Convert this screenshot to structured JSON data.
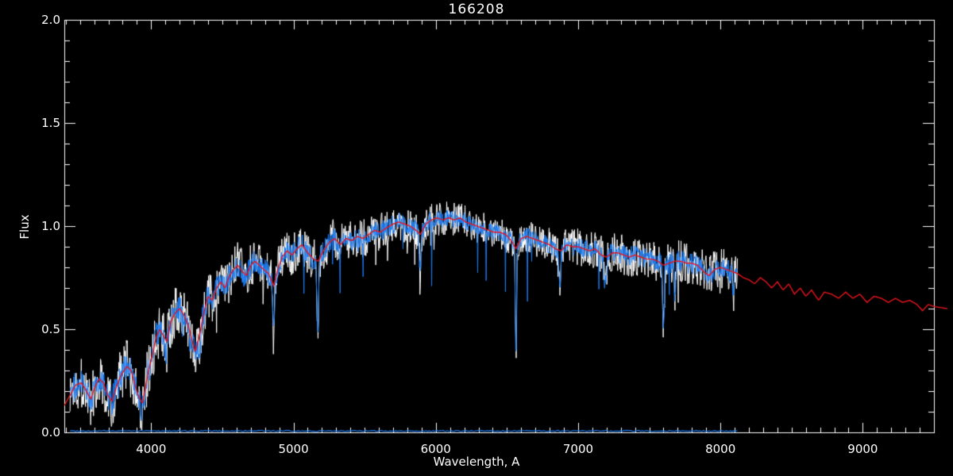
{
  "window": {
    "title": "166208"
  },
  "chart_data": {
    "type": "line",
    "title": "166208",
    "xlabel": "Wavelength, A",
    "ylabel": "Flux",
    "xlim": [
      3390,
      9500
    ],
    "ylim": [
      0.0,
      2.0
    ],
    "grid": false,
    "legend": null,
    "background_color": "#000000",
    "axis_color": "#ffffff",
    "x_tick_values": [
      4000,
      5000,
      6000,
      7000,
      8000,
      9000
    ],
    "x_tick_labels": [
      "4000",
      "5000",
      "6000",
      "7000",
      "8000",
      "9000"
    ],
    "x_minor_step": 100,
    "y_tick_values": [
      0.0,
      0.5,
      1.0,
      1.5,
      2.0
    ],
    "y_tick_labels": [
      "0.0",
      "0.5",
      "1.0",
      "1.5",
      "2.0"
    ],
    "y_minor_step": 0.1,
    "series": [
      {
        "name": "raw-noisy-spectrum",
        "color": "#ffffff",
        "style": "noisy",
        "x_range": [
          3430,
          8120
        ]
      },
      {
        "name": "calibrated-noisy-spectrum",
        "color": "#1b7cf2",
        "style": "noisy",
        "x_range": [
          3430,
          8120
        ]
      },
      {
        "name": "smooth-template-spectrum",
        "color": "#e8141e",
        "style": "smooth",
        "x_range": [
          3390,
          9595
        ]
      },
      {
        "name": "error-spectrum-zero-line",
        "color": "#1b7cf2",
        "style": "flat",
        "x_range": [
          3430,
          8120
        ],
        "level": 0.007
      }
    ],
    "continuum_points": [
      [
        3390,
        0.13
      ],
      [
        3430,
        0.18
      ],
      [
        3470,
        0.23
      ],
      [
        3510,
        0.24
      ],
      [
        3545,
        0.2
      ],
      [
        3575,
        0.16
      ],
      [
        3605,
        0.22
      ],
      [
        3635,
        0.26
      ],
      [
        3665,
        0.24
      ],
      [
        3695,
        0.18
      ],
      [
        3725,
        0.15
      ],
      [
        3755,
        0.22
      ],
      [
        3790,
        0.28
      ],
      [
        3830,
        0.32
      ],
      [
        3860,
        0.3
      ],
      [
        3890,
        0.22
      ],
      [
        3915,
        0.17
      ],
      [
        3940,
        0.14
      ],
      [
        3960,
        0.22
      ],
      [
        3985,
        0.31
      ],
      [
        4010,
        0.38
      ],
      [
        4035,
        0.46
      ],
      [
        4060,
        0.5
      ],
      [
        4085,
        0.47
      ],
      [
        4110,
        0.44
      ],
      [
        4140,
        0.54
      ],
      [
        4170,
        0.58
      ],
      [
        4200,
        0.6
      ],
      [
        4230,
        0.57
      ],
      [
        4260,
        0.52
      ],
      [
        4285,
        0.45
      ],
      [
        4310,
        0.39
      ],
      [
        4340,
        0.47
      ],
      [
        4370,
        0.58
      ],
      [
        4400,
        0.66
      ],
      [
        4430,
        0.64
      ],
      [
        4460,
        0.7
      ],
      [
        4490,
        0.73
      ],
      [
        4520,
        0.7
      ],
      [
        4550,
        0.76
      ],
      [
        4580,
        0.79
      ],
      [
        4610,
        0.81
      ],
      [
        4640,
        0.78
      ],
      [
        4670,
        0.76
      ],
      [
        4700,
        0.81
      ],
      [
        4730,
        0.83
      ],
      [
        4760,
        0.81
      ],
      [
        4790,
        0.79
      ],
      [
        4825,
        0.77
      ],
      [
        4861,
        0.71
      ],
      [
        4890,
        0.79
      ],
      [
        4920,
        0.85
      ],
      [
        4955,
        0.88
      ],
      [
        4990,
        0.86
      ],
      [
        5025,
        0.89
      ],
      [
        5060,
        0.91
      ],
      [
        5100,
        0.87
      ],
      [
        5140,
        0.84
      ],
      [
        5175,
        0.83
      ],
      [
        5210,
        0.88
      ],
      [
        5250,
        0.92
      ],
      [
        5290,
        0.94
      ],
      [
        5330,
        0.91
      ],
      [
        5370,
        0.94
      ],
      [
        5410,
        0.93
      ],
      [
        5450,
        0.95
      ],
      [
        5490,
        0.94
      ],
      [
        5530,
        0.96
      ],
      [
        5570,
        0.98
      ],
      [
        5610,
        0.97
      ],
      [
        5650,
        0.99
      ],
      [
        5700,
        1.01
      ],
      [
        5740,
        1.02
      ],
      [
        5780,
        1.01
      ],
      [
        5820,
        1.0
      ],
      [
        5860,
        0.98
      ],
      [
        5893,
        0.96
      ],
      [
        5930,
        1.01
      ],
      [
        5970,
        1.03
      ],
      [
        6010,
        1.04
      ],
      [
        6050,
        1.03
      ],
      [
        6090,
        1.04
      ],
      [
        6130,
        1.03
      ],
      [
        6170,
        1.04
      ],
      [
        6210,
        1.02
      ],
      [
        6250,
        1.01
      ],
      [
        6290,
        1.0
      ],
      [
        6330,
        0.99
      ],
      [
        6370,
        0.98
      ],
      [
        6410,
        0.97
      ],
      [
        6450,
        0.97
      ],
      [
        6490,
        0.96
      ],
      [
        6530,
        0.93
      ],
      [
        6563,
        0.89
      ],
      [
        6600,
        0.94
      ],
      [
        6640,
        0.95
      ],
      [
        6680,
        0.94
      ],
      [
        6720,
        0.93
      ],
      [
        6760,
        0.92
      ],
      [
        6800,
        0.91
      ],
      [
        6840,
        0.89
      ],
      [
        6880,
        0.88
      ],
      [
        6920,
        0.91
      ],
      [
        6960,
        0.9
      ],
      [
        7000,
        0.9
      ],
      [
        7040,
        0.89
      ],
      [
        7080,
        0.88
      ],
      [
        7120,
        0.89
      ],
      [
        7160,
        0.86
      ],
      [
        7200,
        0.85
      ],
      [
        7240,
        0.87
      ],
      [
        7280,
        0.87
      ],
      [
        7320,
        0.86
      ],
      [
        7360,
        0.85
      ],
      [
        7400,
        0.86
      ],
      [
        7440,
        0.85
      ],
      [
        7480,
        0.84
      ],
      [
        7520,
        0.84
      ],
      [
        7560,
        0.83
      ],
      [
        7600,
        0.81
      ],
      [
        7640,
        0.82
      ],
      [
        7680,
        0.83
      ],
      [
        7720,
        0.83
      ],
      [
        7760,
        0.82
      ],
      [
        7800,
        0.82
      ],
      [
        7840,
        0.81
      ],
      [
        7880,
        0.78
      ],
      [
        7920,
        0.76
      ],
      [
        7960,
        0.79
      ],
      [
        8000,
        0.8
      ],
      [
        8040,
        0.79
      ],
      [
        8080,
        0.78
      ],
      [
        8120,
        0.77
      ],
      [
        8160,
        0.75
      ],
      [
        8200,
        0.74
      ],
      [
        8240,
        0.72
      ],
      [
        8280,
        0.75
      ],
      [
        8320,
        0.73
      ],
      [
        8360,
        0.7
      ],
      [
        8400,
        0.73
      ],
      [
        8440,
        0.69
      ],
      [
        8480,
        0.72
      ],
      [
        8520,
        0.67
      ],
      [
        8560,
        0.7
      ],
      [
        8600,
        0.66
      ],
      [
        8640,
        0.69
      ],
      [
        8690,
        0.64
      ],
      [
        8730,
        0.68
      ],
      [
        8780,
        0.67
      ],
      [
        8830,
        0.65
      ],
      [
        8880,
        0.68
      ],
      [
        8930,
        0.65
      ],
      [
        8980,
        0.67
      ],
      [
        9030,
        0.63
      ],
      [
        9080,
        0.66
      ],
      [
        9130,
        0.65
      ],
      [
        9180,
        0.63
      ],
      [
        9230,
        0.65
      ],
      [
        9280,
        0.63
      ],
      [
        9330,
        0.64
      ],
      [
        9380,
        0.62
      ],
      [
        9420,
        0.59
      ],
      [
        9460,
        0.62
      ],
      [
        9500,
        0.61
      ],
      [
        9595,
        0.6
      ]
    ],
    "absorption_dips": [
      {
        "wl": 3933,
        "depth": 0.2,
        "width": 8
      },
      {
        "wl": 4101,
        "depth": 0.15,
        "width": 7
      },
      {
        "wl": 4340,
        "depth": 0.2,
        "width": 7
      },
      {
        "wl": 4861,
        "depth": 0.3,
        "width": 6
      },
      {
        "wl": 5171,
        "depth": 0.48,
        "width": 5
      },
      {
        "wl": 5890,
        "depth": 0.18,
        "width": 6
      },
      {
        "wl": 6563,
        "depth": 0.58,
        "width": 4
      },
      {
        "wl": 6870,
        "depth": 0.2,
        "width": 7
      },
      {
        "wl": 7190,
        "depth": 0.15,
        "width": 8
      },
      {
        "wl": 7600,
        "depth": 0.35,
        "width": 6
      },
      {
        "wl": 7680,
        "depth": 0.22,
        "width": 5
      },
      {
        "wl": 8090,
        "depth": 0.15,
        "width": 6
      }
    ],
    "noise_profile": [
      [
        3430,
        0.065
      ],
      [
        3900,
        0.07
      ],
      [
        4300,
        0.065
      ],
      [
        4800,
        0.055
      ],
      [
        5300,
        0.05
      ],
      [
        5800,
        0.045
      ],
      [
        6300,
        0.04
      ],
      [
        6800,
        0.042
      ],
      [
        7300,
        0.05
      ],
      [
        7700,
        0.052
      ],
      [
        8120,
        0.05
      ]
    ],
    "white_noise_scale": 1.8,
    "spike_probability": 0.022,
    "spike_max_depth": 0.3
  }
}
